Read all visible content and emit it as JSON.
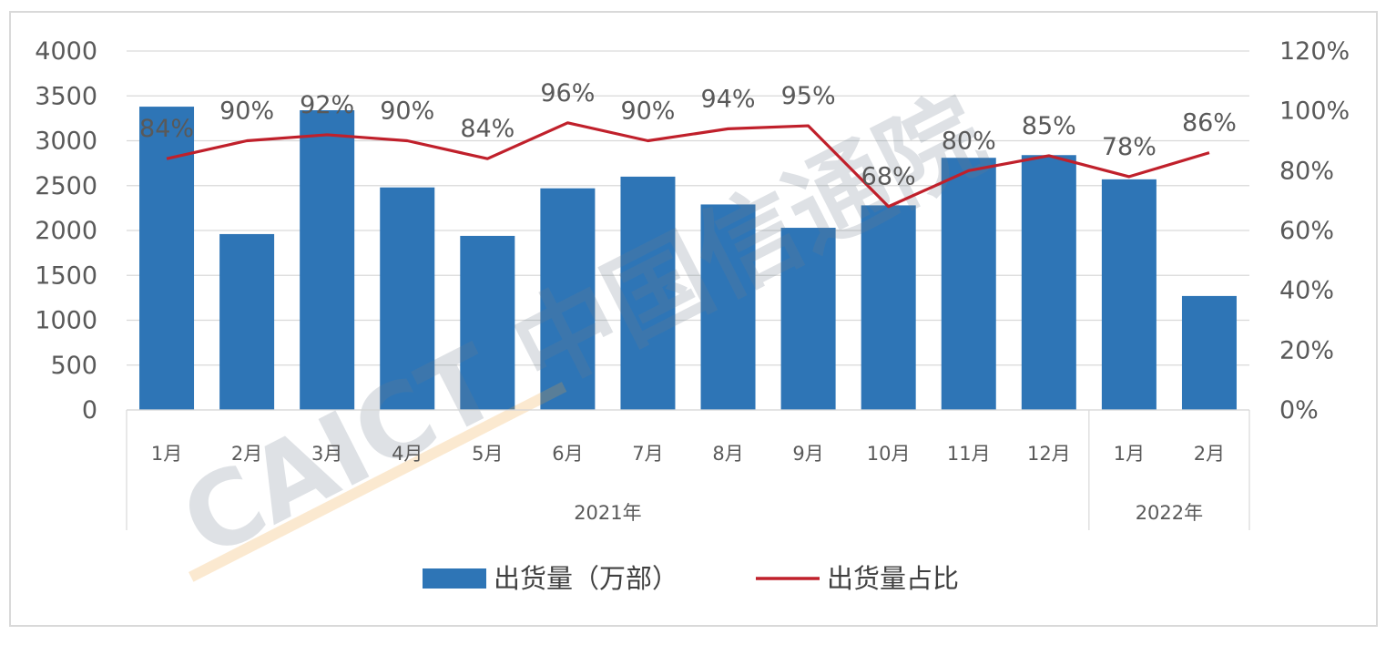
{
  "chart_data": {
    "type": "bar",
    "categories": [
      "1月",
      "2月",
      "3月",
      "4月",
      "5月",
      "6月",
      "7月",
      "8月",
      "9月",
      "10月",
      "11月",
      "12月",
      "1月",
      "2月"
    ],
    "groups": [
      {
        "label": "2021年",
        "count": 12
      },
      {
        "label": "2022年",
        "count": 2
      }
    ],
    "series": [
      {
        "name": "出货量（万部）",
        "type": "bar",
        "axis": "left",
        "color": "#2e75b6",
        "values": [
          3380,
          1960,
          3340,
          2480,
          1940,
          2470,
          2600,
          2290,
          2030,
          2280,
          2810,
          2840,
          2570,
          1270
        ]
      },
      {
        "name": "出货量占比",
        "type": "line",
        "axis": "right",
        "color": "#c0202b",
        "values": [
          84,
          90,
          92,
          90,
          84,
          96,
          90,
          94,
          95,
          68,
          80,
          85,
          78,
          86
        ],
        "labels": [
          "84%",
          "90%",
          "92%",
          "90%",
          "84%",
          "96%",
          "90%",
          "94%",
          "95%",
          "68%",
          "80%",
          "85%",
          "78%",
          "86%"
        ]
      }
    ],
    "y_left": {
      "lim": [
        0,
        4000
      ],
      "ticks": [
        "0",
        "500",
        "1000",
        "1500",
        "2000",
        "2500",
        "3000",
        "3500",
        "4000"
      ]
    },
    "y_right": {
      "lim": [
        0,
        120
      ],
      "ticks": [
        "0%",
        "20%",
        "40%",
        "60%",
        "80%",
        "100%",
        "120%"
      ]
    },
    "grid": true,
    "legend_position": "bottom",
    "watermark": "CAICT 中国信通院"
  }
}
